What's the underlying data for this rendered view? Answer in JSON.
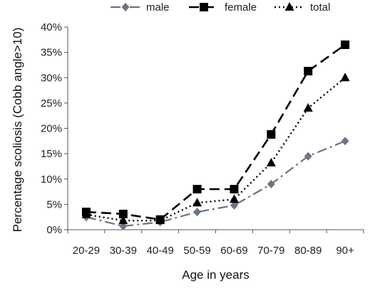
{
  "chart_data": {
    "type": "line",
    "categories": [
      "20-29",
      "30-39",
      "40-49",
      "50-59",
      "60-69",
      "70-79",
      "80-89",
      "90+"
    ],
    "series": [
      {
        "name": "male",
        "values": [
          2.5,
          0.7,
          1.5,
          3.5,
          4.8,
          9.0,
          14.5,
          17.5
        ],
        "color": "#6b7580",
        "marker": "diamond",
        "dash": "dash-dot"
      },
      {
        "name": "female",
        "values": [
          3.5,
          3.1,
          2.0,
          8.0,
          8.0,
          18.8,
          31.3,
          36.5
        ],
        "color": "#000000",
        "marker": "square",
        "dash": "dash"
      },
      {
        "name": "total",
        "values": [
          3.0,
          1.8,
          1.8,
          5.3,
          6.0,
          13.2,
          24.0,
          30.0
        ],
        "color": "#000000",
        "marker": "triangle",
        "dash": "dot"
      }
    ],
    "xlabel": "Age in years",
    "ylabel": "Percentage scoliosis (Cobb angle>10)",
    "ylim": [
      0,
      40
    ],
    "yticks": [
      "0%",
      "5%",
      "10%",
      "15%",
      "20%",
      "25%",
      "30%",
      "35%",
      "40%"
    ],
    "grid": false,
    "legend_position": "top"
  }
}
